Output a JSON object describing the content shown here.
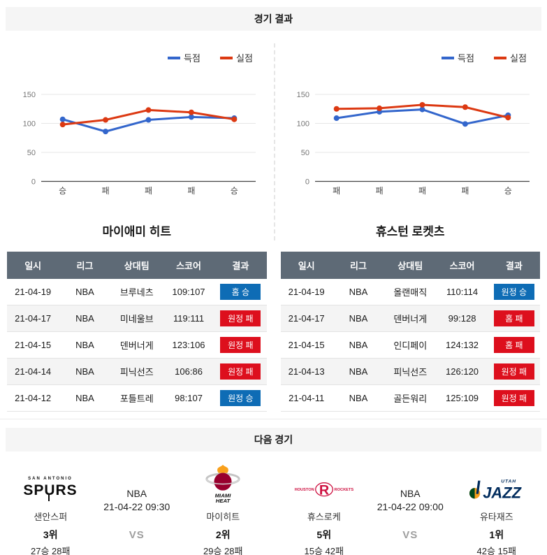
{
  "sections": {
    "results_title": "경기 결과",
    "next_title": "다음 경기"
  },
  "colors": {
    "chart_blue": "#3366cc",
    "chart_red": "#dc3912",
    "win_badge": "#0e6cb5",
    "loss_badge": "#dd0f1d",
    "table_header_bg": "#5e6a76"
  },
  "table_columns": [
    "일시",
    "리그",
    "상대팀",
    "스코어",
    "결과"
  ],
  "chart_data": [
    {
      "type": "line",
      "team": "마이애미 히트",
      "categories": [
        "승",
        "패",
        "패",
        "패",
        "승"
      ],
      "series": [
        {
          "name": "득점",
          "color": "#3366cc",
          "values": [
            107,
            86,
            106,
            111,
            109
          ]
        },
        {
          "name": "실점",
          "color": "#dc3912",
          "values": [
            98,
            106,
            123,
            119,
            107
          ]
        }
      ],
      "ylim": [
        0,
        150
      ],
      "yticks": [
        0,
        50,
        100,
        150
      ],
      "legend_position": "top-right",
      "grid": true
    },
    {
      "type": "line",
      "team": "휴스턴 로켓츠",
      "categories": [
        "패",
        "패",
        "패",
        "패",
        "승"
      ],
      "series": [
        {
          "name": "득점",
          "color": "#3366cc",
          "values": [
            109,
            120,
            124,
            99,
            114
          ]
        },
        {
          "name": "실점",
          "color": "#dc3912",
          "values": [
            125,
            126,
            132,
            128,
            110
          ]
        }
      ],
      "ylim": [
        0,
        150
      ],
      "yticks": [
        0,
        50,
        100,
        150
      ],
      "legend_position": "top-right",
      "grid": true
    }
  ],
  "teams": [
    {
      "name": "마이애미 히트",
      "rows": [
        {
          "date": "21-04-19",
          "league": "NBA",
          "opponent": "브루네츠",
          "score": "109:107",
          "result": "홈 승",
          "outcome": "win"
        },
        {
          "date": "21-04-17",
          "league": "NBA",
          "opponent": "미네울브",
          "score": "119:111",
          "result": "원정 패",
          "outcome": "loss"
        },
        {
          "date": "21-04-15",
          "league": "NBA",
          "opponent": "덴버너게",
          "score": "123:106",
          "result": "원정 패",
          "outcome": "loss"
        },
        {
          "date": "21-04-14",
          "league": "NBA",
          "opponent": "피닉선즈",
          "score": "106:86",
          "result": "원정 패",
          "outcome": "loss"
        },
        {
          "date": "21-04-12",
          "league": "NBA",
          "opponent": "포틀트레",
          "score": "98:107",
          "result": "원정 승",
          "outcome": "win"
        }
      ]
    },
    {
      "name": "휴스턴 로켓츠",
      "rows": [
        {
          "date": "21-04-19",
          "league": "NBA",
          "opponent": "올랜매직",
          "score": "110:114",
          "result": "원정 승",
          "outcome": "win"
        },
        {
          "date": "21-04-17",
          "league": "NBA",
          "opponent": "덴버너게",
          "score": "99:128",
          "result": "홈 패",
          "outcome": "loss"
        },
        {
          "date": "21-04-15",
          "league": "NBA",
          "opponent": "인디페이",
          "score": "124:132",
          "result": "홈 패",
          "outcome": "loss"
        },
        {
          "date": "21-04-13",
          "league": "NBA",
          "opponent": "피닉선즈",
          "score": "126:120",
          "result": "원정 패",
          "outcome": "loss"
        },
        {
          "date": "21-04-11",
          "league": "NBA",
          "opponent": "골든워리",
          "score": "125:109",
          "result": "원정 패",
          "outcome": "loss"
        }
      ]
    }
  ],
  "next_games": [
    {
      "league": "NBA",
      "datetime": "21-04-22 09:30",
      "vs": "VS",
      "home": {
        "team": "샌안스퍼",
        "rank": "3위",
        "record": "27승 28패",
        "logo": "spurs"
      },
      "away": {
        "team": "마이히트",
        "rank": "2위",
        "record": "29승 28패",
        "logo": "heat"
      }
    },
    {
      "league": "NBA",
      "datetime": "21-04-22 09:00",
      "vs": "VS",
      "home": {
        "team": "휴스로케",
        "rank": "5위",
        "record": "15승 42패",
        "logo": "rockets"
      },
      "away": {
        "team": "유타재즈",
        "rank": "1위",
        "record": "42승 15패",
        "logo": "jazz"
      }
    }
  ]
}
